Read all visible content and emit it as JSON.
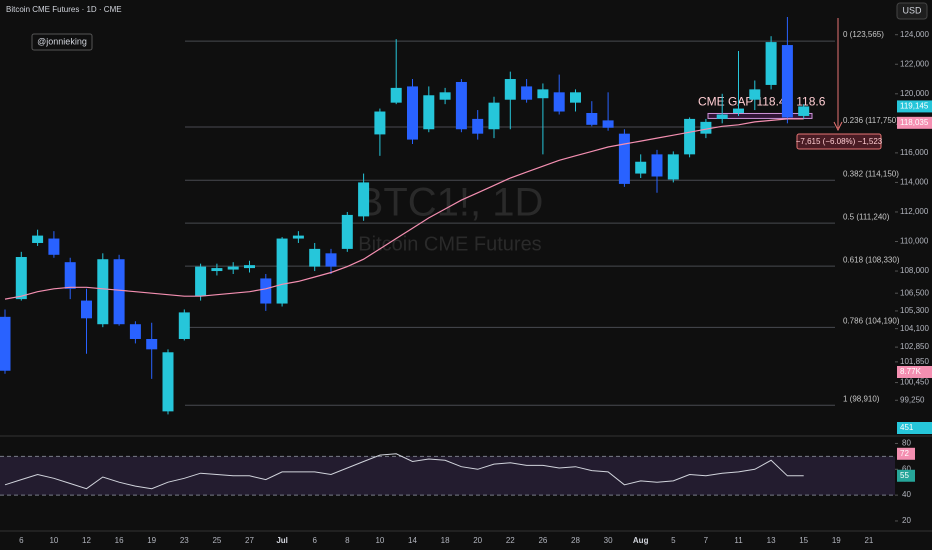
{
  "chart_data": {
    "type": "candlestick",
    "title": "Bitcoin CME Futures · 1D · CME",
    "watermark": "BTC1!, 1D",
    "watermark_subtitle": "Bitcoin CME Futures",
    "author": "@jonnieking",
    "currency": "USD",
    "categories": [
      null,
      "6",
      null,
      "10",
      null,
      "12",
      null,
      "16",
      null,
      "19",
      null,
      "23",
      null,
      "25",
      null,
      "27",
      null,
      "Jul",
      null,
      "6",
      null,
      "8",
      null,
      "10",
      null,
      "14",
      null,
      "18",
      null,
      "20",
      null,
      "22",
      null,
      "26",
      null,
      "28",
      null,
      "30",
      null,
      "Aug",
      null,
      "5",
      null,
      "7",
      null,
      "11",
      null,
      "13",
      null,
      "15",
      null,
      "19",
      null,
      "21"
    ],
    "open": [
      104900,
      106100,
      109900,
      110200,
      108600,
      106000,
      104400,
      108800,
      104400,
      103400,
      98500,
      103400,
      106300,
      108000,
      108100,
      108200,
      107500,
      105800,
      110200,
      108300,
      109200,
      109500,
      111700,
      117250,
      119400,
      120500,
      117600,
      119600,
      120800,
      118300,
      117600,
      119600,
      120500,
      119700,
      120100,
      119400,
      118700,
      118200,
      117300,
      114600,
      115900,
      114200,
      115900,
      117300,
      118300,
      118700,
      119600,
      120600,
      123300,
      118500,
      null,
      null,
      null,
      null
    ],
    "high": [
      105400,
      109300,
      110800,
      110700,
      108900,
      106800,
      109200,
      109100,
      104600,
      104500,
      102700,
      105400,
      108500,
      108500,
      108600,
      108700,
      107800,
      110300,
      110700,
      109900,
      109500,
      112000,
      114600,
      119000,
      123700,
      121000,
      120500,
      120400,
      121000,
      118900,
      119800,
      121500,
      121000,
      120700,
      121300,
      120300,
      119500,
      120100,
      117600,
      115900,
      116200,
      116100,
      118400,
      118300,
      120000,
      122900,
      120900,
      123900,
      125200,
      119300,
      null,
      null,
      null,
      null
    ],
    "low": [
      101050,
      106000,
      109700,
      108900,
      106100,
      102400,
      104200,
      104300,
      103100,
      100700,
      98300,
      103300,
      106000,
      107700,
      107800,
      107900,
      105300,
      105600,
      109900,
      108000,
      107800,
      109300,
      111400,
      115800,
      119300,
      116600,
      117400,
      119300,
      117400,
      116900,
      117000,
      117600,
      119400,
      115900,
      118600,
      118800,
      117800,
      117500,
      113700,
      114300,
      113300,
      114000,
      115700,
      117000,
      118000,
      118500,
      118900,
      120300,
      118000,
      118300,
      null,
      null,
      null,
      null
    ],
    "close": [
      101250,
      108950,
      110400,
      109100,
      106800,
      104800,
      108800,
      104400,
      103400,
      102700,
      102500,
      105200,
      108300,
      108200,
      108300,
      108400,
      105800,
      110200,
      110400,
      109500,
      108300,
      111800,
      114000,
      118800,
      120400,
      116900,
      119900,
      120100,
      117600,
      117300,
      119400,
      121000,
      119600,
      120300,
      118800,
      120100,
      117900,
      117700,
      113900,
      115400,
      114400,
      115900,
      118300,
      118100,
      118600,
      119000,
      120300,
      123500,
      118400,
      119145,
      null,
      null,
      null,
      null
    ],
    "up_color": "#26c6da",
    "down_color": "#2962ff",
    "ma": {
      "color": "#f48fb1",
      "values": [
        106100,
        106300,
        106600,
        106800,
        106900,
        106900,
        106800,
        106700,
        106600,
        106500,
        106400,
        106300,
        106300,
        106400,
        106500,
        106600,
        106800,
        107100,
        107300,
        107600,
        107900,
        108300,
        108800,
        109500,
        110200,
        110900,
        111600,
        112200,
        112800,
        113300,
        113800,
        114300,
        114700,
        115100,
        115500,
        115800,
        116100,
        116400,
        116600,
        116800,
        117000,
        117200,
        117400,
        117600,
        117800,
        117900,
        118100,
        118200,
        118300,
        118300,
        null,
        null,
        null,
        null
      ]
    },
    "ylim": [
      96900,
      126350
    ],
    "yticks": [
      {
        "value": 124000,
        "label": "124,000"
      },
      {
        "value": 122000,
        "label": "122,000"
      },
      {
        "value": 120000,
        "label": "120,000"
      },
      {
        "value": 116000,
        "label": "116,000"
      },
      {
        "value": 114000,
        "label": "114,000"
      },
      {
        "value": 112000,
        "label": "112,000"
      },
      {
        "value": 110000,
        "label": "110,000"
      },
      {
        "value": 108000,
        "label": "108,000"
      },
      {
        "value": 106500,
        "label": "106,500"
      },
      {
        "value": 105300,
        "label": "105,300"
      },
      {
        "value": 104100,
        "label": "104,100"
      },
      {
        "value": 102850,
        "label": "102,850"
      },
      {
        "value": 101850,
        "label": "101,850"
      },
      {
        "value": 100450,
        "label": "100,450"
      },
      {
        "value": 99250,
        "label": "99,250"
      }
    ],
    "fib_levels": [
      {
        "value": 123565,
        "label": "0 (123,565)"
      },
      {
        "value": 117750,
        "label": "0.236 (117,750)"
      },
      {
        "value": 114150,
        "label": "0.382 (114,150)"
      },
      {
        "value": 111240,
        "label": "0.5 (111,240)"
      },
      {
        "value": 108330,
        "label": "0.618 (108,330)"
      },
      {
        "value": 104190,
        "label": "0.786 (104,190)"
      },
      {
        "value": 98910,
        "label": "1 (98,910)"
      }
    ],
    "price_badges": [
      {
        "value": 119145,
        "label": "119,145",
        "color": "#26c6da"
      },
      {
        "value": 118035,
        "label": "118,035",
        "color": "#f48fb1"
      }
    ],
    "volume_badges": [
      {
        "value": 8770,
        "label": "8.77K",
        "color": "#f48fb1"
      },
      {
        "value": 451,
        "color": "#26c6da"
      }
    ],
    "gap": {
      "text": "CME GAP 118.4 - 118.6",
      "low": 118400,
      "high": 118600
    },
    "measure_text": "−7,615 (−6.08%) −1,523",
    "rsi": {
      "color": "#d1d4dc",
      "values": [
        48,
        52,
        56,
        53,
        49,
        45,
        54,
        50,
        47,
        45,
        50,
        53,
        57,
        56,
        55,
        55,
        52,
        58,
        58,
        58,
        56,
        61,
        66,
        71,
        72,
        66,
        68,
        67,
        62,
        60,
        64,
        65,
        63,
        63,
        61,
        62,
        59,
        58,
        48,
        51,
        50,
        51,
        56,
        55,
        57,
        58,
        60,
        67,
        55,
        55,
        null,
        null,
        null,
        null
      ],
      "ylim": [
        13,
        85
      ],
      "yticks": [
        20,
        40,
        60,
        80
      ],
      "bands": [
        40,
        70
      ],
      "badges": [
        {
          "value": 72,
          "color": "#f48fb1"
        },
        {
          "value": 55,
          "color": "#26a69a"
        }
      ]
    }
  }
}
